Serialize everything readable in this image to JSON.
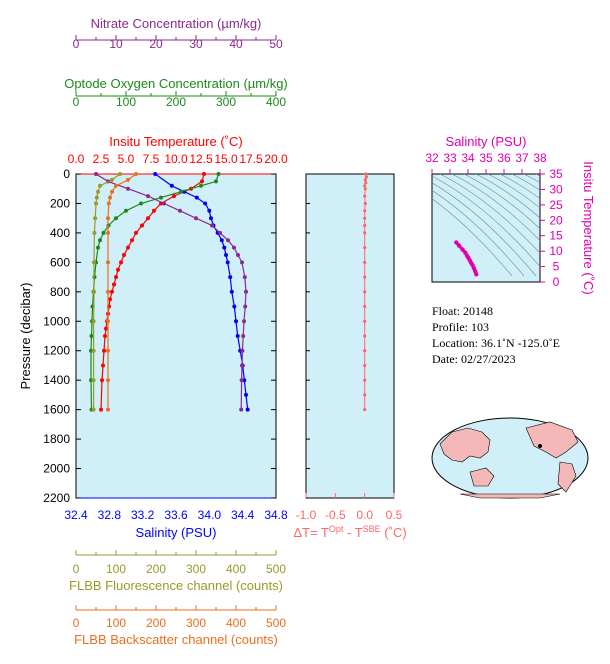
{
  "colors": {
    "nitrate": "#8b2a8b",
    "oxygen": "#1a8a1a",
    "temperature": "#ff0000",
    "salinity": "#0000ff",
    "fluorescence": "#9a9a2a",
    "backscatter": "#e87020",
    "delta": "#ff6666",
    "ts": "#e000b0",
    "plot_bg": "#d0eff8"
  },
  "axes": {
    "nitrate": {
      "title": "Nitrate Concentration (µm/kg)",
      "ticks": [
        "0",
        "10",
        "20",
        "30",
        "40",
        "50"
      ]
    },
    "oxygen": {
      "title": "Optode Oxygen Concentration (µm/kg)",
      "ticks": [
        "0",
        "100",
        "200",
        "300",
        "400"
      ]
    },
    "temperature": {
      "title": "Insitu Temperature (˚C)",
      "ticks": [
        "0.0",
        "2.5",
        "5.0",
        "7.5",
        "10.0",
        "12.5",
        "15.0",
        "17.5",
        "20.0"
      ]
    },
    "pressure": {
      "title": "Pressure (decibar)",
      "ticks": [
        "0",
        "200",
        "400",
        "600",
        "800",
        "1000",
        "1200",
        "1400",
        "1600",
        "1800",
        "2000",
        "2200"
      ]
    },
    "salinity": {
      "title": "Salinity (PSU)",
      "ticks": [
        "32.4",
        "32.8",
        "33.2",
        "33.6",
        "34.0",
        "34.4",
        "34.8"
      ]
    },
    "fluorescence": {
      "title": "FLBB Fluorescence channel (counts)",
      "ticks": [
        "0",
        "100",
        "200",
        "300",
        "400",
        "500"
      ]
    },
    "backscatter": {
      "title": "FLBB Backscatter channel (counts)",
      "ticks": [
        "0",
        "100",
        "200",
        "300",
        "400",
        "500"
      ]
    },
    "delta": {
      "title_prefix": "ΔT= T",
      "sup1": "Opt",
      "mid": " - T",
      "sup2": "SBE",
      "suffix": " (˚C)",
      "ticks": [
        "-1.0",
        "-0.5",
        "0.0",
        "0.5"
      ]
    },
    "ts_salinity": {
      "title": "Salinity (PSU)",
      "ticks": [
        "32",
        "33",
        "34",
        "35",
        "36",
        "37",
        "38"
      ]
    },
    "ts_temperature": {
      "title": "Insitu Temperature (˚C)",
      "ticks": [
        "0",
        "5",
        "10",
        "15",
        "20",
        "25",
        "30",
        "35"
      ]
    }
  },
  "info": {
    "float": "Float:  20148",
    "profile": "Profile:  103",
    "location": "Location:  36.1˚N  -125.0˚E",
    "date": "Date:  02/27/2023"
  },
  "chart_data": [
    {
      "type": "line",
      "title": "",
      "ylabel": "Pressure (decibar)",
      "ylim": [
        2200,
        0
      ],
      "series": [
        {
          "key": "temperature",
          "xlim": [
            0,
            20
          ],
          "x": [
            12.8,
            12.6,
            11.5,
            9.8,
            8.5,
            7.8,
            7.2,
            6.6,
            6.0,
            5.6,
            5.2,
            4.8,
            4.5,
            4.2,
            4.0,
            3.8,
            3.6,
            3.4,
            3.3,
            3.2,
            3.1,
            3.0,
            2.9,
            2.8,
            2.7,
            2.6,
            2.5
          ],
          "y": [
            0,
            50,
            100,
            150,
            200,
            250,
            300,
            350,
            400,
            450,
            500,
            550,
            600,
            650,
            700,
            750,
            800,
            850,
            900,
            950,
            1000,
            1050,
            1100,
            1200,
            1300,
            1400,
            1600
          ]
        },
        {
          "key": "salinity",
          "xlim": [
            32.4,
            34.8
          ],
          "x": [
            33.35,
            33.55,
            33.7,
            33.85,
            33.95,
            34.0,
            34.02,
            34.05,
            34.1,
            34.15,
            34.18,
            34.2,
            34.22,
            34.25,
            34.27,
            34.3,
            34.32,
            34.34,
            34.37,
            34.4,
            34.42,
            34.44,
            34.46
          ],
          "y": [
            0,
            80,
            120,
            160,
            200,
            250,
            300,
            350,
            400,
            450,
            500,
            550,
            600,
            700,
            800,
            900,
            1000,
            1100,
            1200,
            1300,
            1400,
            1500,
            1600
          ]
        },
        {
          "key": "oxygen",
          "xlim": [
            0,
            400
          ],
          "x": [
            285,
            280,
            250,
            210,
            170,
            130,
            100,
            80,
            65,
            55,
            48,
            44,
            40,
            37,
            35,
            33,
            32,
            31,
            30,
            30,
            31
          ],
          "y": [
            0,
            50,
            80,
            120,
            160,
            200,
            250,
            300,
            350,
            400,
            450,
            500,
            600,
            700,
            800,
            900,
            1000,
            1100,
            1200,
            1400,
            1600
          ]
        },
        {
          "key": "nitrate",
          "xlim": [
            0,
            50
          ],
          "x": [
            5,
            8,
            13,
            18,
            22,
            26,
            30,
            34,
            36,
            38,
            39.5,
            40.5,
            41.5,
            42.2,
            42.5,
            42.3,
            42.0,
            41.8,
            41.6,
            41.5,
            41.4,
            41.3
          ],
          "y": [
            0,
            50,
            100,
            150,
            200,
            250,
            300,
            350,
            400,
            450,
            500,
            550,
            600,
            700,
            800,
            900,
            1000,
            1100,
            1200,
            1300,
            1400,
            1600
          ]
        },
        {
          "key": "fluorescence",
          "xlim": [
            0,
            500
          ],
          "x": [
            110,
            90,
            60,
            55,
            52,
            50,
            48,
            46,
            45,
            45,
            44,
            44,
            44,
            44
          ],
          "y": [
            0,
            40,
            80,
            120,
            160,
            200,
            300,
            400,
            600,
            800,
            1000,
            1200,
            1400,
            1600
          ]
        },
        {
          "key": "backscatter",
          "xlim": [
            0,
            500
          ],
          "x": [
            150,
            130,
            100,
            90,
            85,
            82,
            80,
            80,
            80,
            80,
            80,
            80,
            80,
            80
          ],
          "y": [
            0,
            40,
            80,
            120,
            160,
            200,
            300,
            400,
            600,
            800,
            1000,
            1200,
            1400,
            1600
          ]
        }
      ]
    },
    {
      "type": "scatter",
      "xlabel": "ΔT",
      "xlim": [
        -1.0,
        0.5
      ],
      "ylim": [
        2200,
        0
      ],
      "x": [
        0.02,
        0.03,
        0.01,
        0.02,
        0.0,
        0.01,
        0.0,
        0.01,
        0.0,
        0.0,
        0.0,
        0.0,
        0.0,
        0.0,
        0.0,
        0.0,
        0.0,
        0.0,
        0.0,
        0.0,
        0.0,
        0.0,
        0.0,
        0.0
      ],
      "y": [
        0,
        20,
        40,
        60,
        80,
        100,
        150,
        200,
        250,
        300,
        350,
        400,
        500,
        600,
        700,
        800,
        900,
        1000,
        1100,
        1200,
        1300,
        1400,
        1500,
        1600
      ]
    },
    {
      "type": "scatter",
      "xlabel": "Salinity (PSU)",
      "ylabel": "Insitu Temperature (˚C)",
      "xlim": [
        32,
        38
      ],
      "ylim": [
        0,
        35
      ],
      "x": [
        33.35,
        33.5,
        33.7,
        33.85,
        33.95,
        34.02,
        34.1,
        34.18,
        34.25,
        34.32,
        34.4,
        34.46
      ],
      "y": [
        12.8,
        11.8,
        10.5,
        9.5,
        8.5,
        7.8,
        7.0,
        6.2,
        5.5,
        4.5,
        3.5,
        2.5
      ]
    }
  ]
}
